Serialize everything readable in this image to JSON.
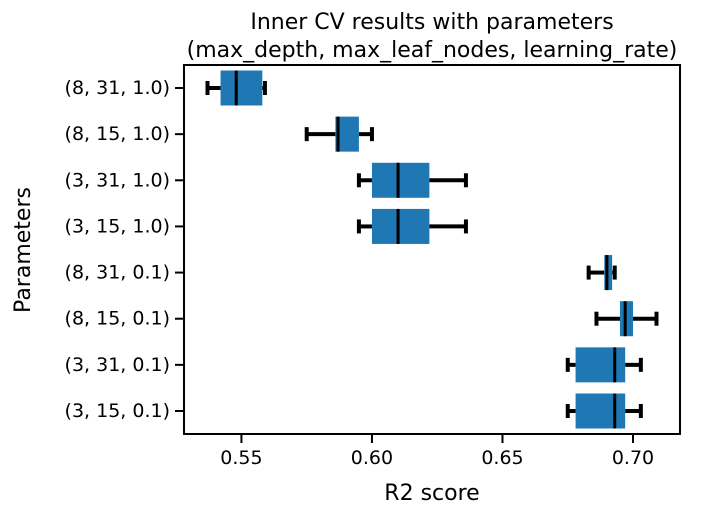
{
  "chart_data": {
    "type": "boxplot",
    "orientation": "horizontal",
    "title_lines": [
      "Inner CV results with parameters",
      "(max_depth, max_leaf_nodes, learning_rate)"
    ],
    "xlabel": "R2 score",
    "ylabel": "Parameters",
    "xlim": [
      0.528,
      0.718
    ],
    "xticks": [
      0.55,
      0.6,
      0.65,
      0.7
    ],
    "xtick_labels": [
      "0.55",
      "0.60",
      "0.65",
      "0.70"
    ],
    "grid": false,
    "box_color": "#1f77b4",
    "median_color": "#000000",
    "whisker_color": "#000000",
    "categories": [
      {
        "label": "(8, 31, 1.0)",
        "whislo": 0.537,
        "q1": 0.542,
        "median": 0.548,
        "q3": 0.558,
        "whishi": 0.559
      },
      {
        "label": "(8, 15, 1.0)",
        "whislo": 0.575,
        "q1": 0.586,
        "median": 0.587,
        "q3": 0.595,
        "whishi": 0.6
      },
      {
        "label": "(3, 31, 1.0)",
        "whislo": 0.595,
        "q1": 0.6,
        "median": 0.61,
        "q3": 0.622,
        "whishi": 0.636
      },
      {
        "label": "(3, 15, 1.0)",
        "whislo": 0.595,
        "q1": 0.6,
        "median": 0.61,
        "q3": 0.622,
        "whishi": 0.636
      },
      {
        "label": "(8, 31, 0.1)",
        "whislo": 0.683,
        "q1": 0.689,
        "median": 0.69,
        "q3": 0.692,
        "whishi": 0.693
      },
      {
        "label": "(8, 15, 0.1)",
        "whislo": 0.686,
        "q1": 0.695,
        "median": 0.697,
        "q3": 0.7,
        "whishi": 0.709
      },
      {
        "label": "(3, 31, 0.1)",
        "whislo": 0.675,
        "q1": 0.678,
        "median": 0.693,
        "q3": 0.697,
        "whishi": 0.703
      },
      {
        "label": "(3, 15, 0.1)",
        "whislo": 0.675,
        "q1": 0.678,
        "median": 0.693,
        "q3": 0.697,
        "whishi": 0.703
      }
    ]
  }
}
